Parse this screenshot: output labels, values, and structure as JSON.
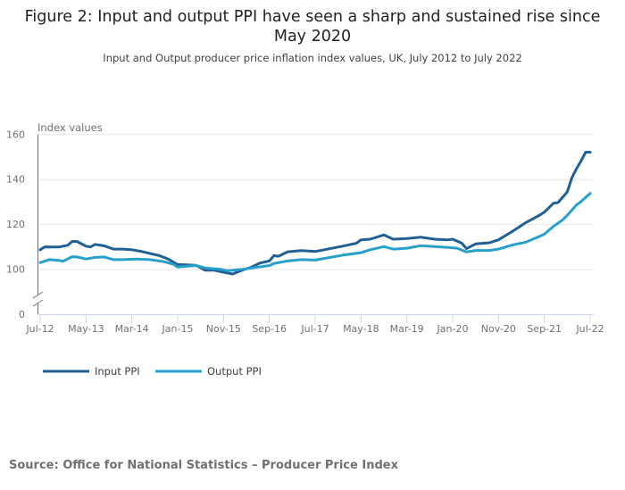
{
  "title": "Figure 2: Input and output PPI have seen a sharp and sustained rise since May 2020",
  "subtitle": "Input and Output producer price inflation index values, UK, July 2012 to July 2022",
  "source": "Source: Office for National Statistics – Producer Price Index",
  "chart_data": {
    "type": "line",
    "title": "Figure 2: Input and output PPI have seen a sharp and sustained rise since May 2020",
    "subtitle": "Input and Output producer price inflation index values, UK, July 2012 to July 2022",
    "ylabel": "Index values",
    "xlabel": "",
    "ylim": [
      0,
      160
    ],
    "y_axis_break": [
      0,
      90
    ],
    "y_ticks": [
      "0",
      "100",
      "120",
      "140",
      "160"
    ],
    "x_range": [
      "2012-07",
      "2022-07"
    ],
    "x_ticks": [
      {
        "date": "2012-07",
        "label": "Jul-12"
      },
      {
        "date": "2013-05",
        "label": "May-13"
      },
      {
        "date": "2014-03",
        "label": "Mar-14"
      },
      {
        "date": "2015-01",
        "label": "Jan-15"
      },
      {
        "date": "2015-11",
        "label": "Nov-15"
      },
      {
        "date": "2016-09",
        "label": "Sep-16"
      },
      {
        "date": "2017-07",
        "label": "Jul-17"
      },
      {
        "date": "2018-05",
        "label": "May-18"
      },
      {
        "date": "2019-03",
        "label": "Mar-19"
      },
      {
        "date": "2020-01",
        "label": "Jan-20"
      },
      {
        "date": "2020-11",
        "label": "Nov-20"
      },
      {
        "date": "2021-09",
        "label": "Sep-21"
      },
      {
        "date": "2022-07",
        "label": "Jul-22"
      }
    ],
    "grid": true,
    "legend": "bottom-left",
    "series": [
      {
        "name": "Input PPI",
        "color": "#206095",
        "points": [
          [
            "2012-07",
            108.6
          ],
          [
            "2012-08",
            109.9
          ],
          [
            "2012-11",
            109.8
          ],
          [
            "2013-01",
            110.6
          ],
          [
            "2013-02",
            112.3
          ],
          [
            "2013-03",
            112.3
          ],
          [
            "2013-05",
            110.2
          ],
          [
            "2013-06",
            109.9
          ],
          [
            "2013-07",
            111.0
          ],
          [
            "2013-09",
            110.3
          ],
          [
            "2013-11",
            108.9
          ],
          [
            "2014-01",
            108.9
          ],
          [
            "2014-03",
            108.6
          ],
          [
            "2014-05",
            107.9
          ],
          [
            "2014-07",
            106.9
          ],
          [
            "2014-09",
            106.0
          ],
          [
            "2014-11",
            104.4
          ],
          [
            "2015-01",
            102.0
          ],
          [
            "2015-02",
            102.0
          ],
          [
            "2015-05",
            101.7
          ],
          [
            "2015-07",
            99.5
          ],
          [
            "2015-09",
            99.5
          ],
          [
            "2015-11",
            98.6
          ],
          [
            "2016-01",
            97.8
          ],
          [
            "2016-03",
            99.5
          ],
          [
            "2016-05",
            100.8
          ],
          [
            "2016-07",
            102.7
          ],
          [
            "2016-09",
            103.6
          ],
          [
            "2016-10",
            106.0
          ],
          [
            "2016-11",
            105.7
          ],
          [
            "2017-01",
            107.7
          ],
          [
            "2017-04",
            108.2
          ],
          [
            "2017-07",
            107.8
          ],
          [
            "2017-10",
            109.0
          ],
          [
            "2018-01",
            110.2
          ],
          [
            "2018-04",
            111.5
          ],
          [
            "2018-05",
            113.0
          ],
          [
            "2018-07",
            113.3
          ],
          [
            "2018-10",
            115.2
          ],
          [
            "2018-12",
            113.3
          ],
          [
            "2019-03",
            113.6
          ],
          [
            "2019-06",
            114.2
          ],
          [
            "2019-09",
            113.3
          ],
          [
            "2019-12",
            113.0
          ],
          [
            "2020-01",
            113.3
          ],
          [
            "2020-03",
            111.5
          ],
          [
            "2020-04",
            109.1
          ],
          [
            "2020-06",
            111.2
          ],
          [
            "2020-09",
            111.7
          ],
          [
            "2020-11",
            113.0
          ],
          [
            "2021-02",
            116.7
          ],
          [
            "2021-05",
            120.7
          ],
          [
            "2021-08",
            124.0
          ],
          [
            "2021-09",
            125.3
          ],
          [
            "2021-11",
            129.3
          ],
          [
            "2021-12",
            129.6
          ],
          [
            "2022-02",
            134.3
          ],
          [
            "2022-03",
            140.6
          ],
          [
            "2022-04",
            144.6
          ],
          [
            "2022-05",
            148.0
          ],
          [
            "2022-06",
            152.0
          ],
          [
            "2022-07",
            152.0
          ]
        ]
      },
      {
        "name": "Output PPI",
        "color": "#27a0cc",
        "points": [
          [
            "2012-07",
            102.9
          ],
          [
            "2012-09",
            104.2
          ],
          [
            "2012-11",
            103.9
          ],
          [
            "2012-12",
            103.5
          ],
          [
            "2013-02",
            105.5
          ],
          [
            "2013-03",
            105.4
          ],
          [
            "2013-05",
            104.5
          ],
          [
            "2013-07",
            105.2
          ],
          [
            "2013-09",
            105.4
          ],
          [
            "2013-11",
            104.2
          ],
          [
            "2014-01",
            104.2
          ],
          [
            "2014-04",
            104.5
          ],
          [
            "2014-07",
            104.2
          ],
          [
            "2014-10",
            103.3
          ],
          [
            "2014-12",
            102.2
          ],
          [
            "2015-01",
            100.9
          ],
          [
            "2015-03",
            101.3
          ],
          [
            "2015-05",
            101.6
          ],
          [
            "2015-07",
            100.5
          ],
          [
            "2015-10",
            100.0
          ],
          [
            "2015-12",
            99.3
          ],
          [
            "2016-03",
            99.9
          ],
          [
            "2016-06",
            100.7
          ],
          [
            "2016-09",
            101.6
          ],
          [
            "2016-10",
            102.5
          ],
          [
            "2017-01",
            103.6
          ],
          [
            "2017-04",
            104.2
          ],
          [
            "2017-07",
            104.0
          ],
          [
            "2018-01",
            106.2
          ],
          [
            "2018-05",
            107.3
          ],
          [
            "2018-07",
            108.6
          ],
          [
            "2018-10",
            110.0
          ],
          [
            "2018-12",
            108.9
          ],
          [
            "2019-03",
            109.3
          ],
          [
            "2019-06",
            110.4
          ],
          [
            "2019-09",
            110.0
          ],
          [
            "2019-12",
            109.6
          ],
          [
            "2020-02",
            109.3
          ],
          [
            "2020-04",
            107.6
          ],
          [
            "2020-06",
            108.3
          ],
          [
            "2020-09",
            108.3
          ],
          [
            "2020-11",
            108.9
          ],
          [
            "2021-02",
            110.7
          ],
          [
            "2021-05",
            112.0
          ],
          [
            "2021-08",
            114.6
          ],
          [
            "2021-09",
            115.5
          ],
          [
            "2021-11",
            119.0
          ],
          [
            "2022-01",
            121.9
          ],
          [
            "2022-02",
            123.9
          ],
          [
            "2022-04",
            128.5
          ],
          [
            "2022-05",
            130.0
          ],
          [
            "2022-07",
            133.7
          ]
        ]
      }
    ]
  }
}
